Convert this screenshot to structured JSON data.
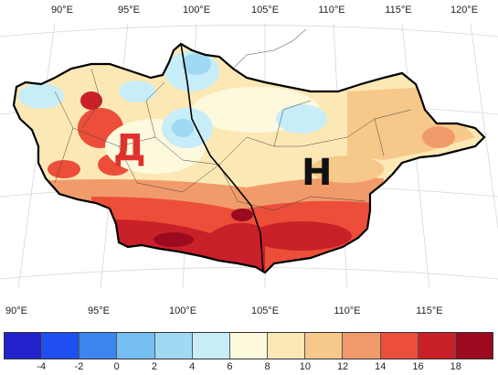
{
  "top_axis_labels": [
    "90°E",
    "95°E",
    "100°E",
    "105°E",
    "110°E",
    "115°E",
    "120°E"
  ],
  "bottom_axis_labels": [
    "90°E",
    "95°E",
    "100°E",
    "105°E",
    "110°E",
    "115°E"
  ],
  "zone_labels": {
    "west": "Д",
    "east": "Н"
  },
  "zone_colors": {
    "west": "#e0322d",
    "east": "#111111"
  },
  "legend": {
    "colors": [
      "#2222cc",
      "#1f4ff0",
      "#3d85ee",
      "#76bff2",
      "#9fd9f4",
      "#c7eef8",
      "#fdf9dd",
      "#fbe8b5",
      "#f6c98b",
      "#f29b6a",
      "#ec4e3a",
      "#c9202a",
      "#9b0a1e"
    ],
    "labels": [
      "-4",
      "-2",
      "0",
      "2",
      "4",
      "6",
      "8",
      "10",
      "12",
      "14",
      "16",
      "18"
    ]
  }
}
